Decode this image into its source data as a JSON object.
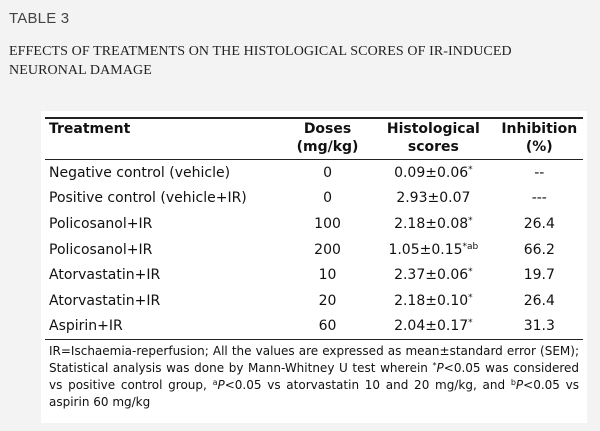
{
  "table_label": "TABLE 3",
  "caption": "EFFECTS OF TREATMENTS ON THE HISTOLOGICAL SCORES OF IR-INDUCED NEURONAL DAMAGE",
  "table": {
    "headers": {
      "treatment": "Treatment",
      "doses": "Doses",
      "doses_unit": "(mg/kg)",
      "scores": "Histological",
      "scores_line2": "scores",
      "inhibition": "Inhibition",
      "inhibition_unit": "(%)"
    },
    "rows": [
      {
        "treatment": "Negative control (vehicle)",
        "dose": "0",
        "score": "0.09±0.06",
        "score_sup": "*",
        "inhibition": "--"
      },
      {
        "treatment": "Positive control (vehicle+IR)",
        "dose": "0",
        "score": "2.93±0.07",
        "score_sup": "",
        "inhibition": "---"
      },
      {
        "treatment": "Policosanol+IR",
        "dose": "100",
        "score": "2.18±0.08",
        "score_sup": "*",
        "inhibition": "26.4"
      },
      {
        "treatment": "Policosanol+IR",
        "dose": "200",
        "score": "1.05±0.15",
        "score_sup": "*ab",
        "inhibition": "66.2"
      },
      {
        "treatment": "Atorvastatin+IR",
        "dose": "10",
        "score": "2.37±0.06",
        "score_sup": "*",
        "inhibition": "19.7"
      },
      {
        "treatment": "Atorvastatin+IR",
        "dose": "20",
        "score": "2.18±0.10",
        "score_sup": "*",
        "inhibition": "26.4"
      },
      {
        "treatment": "Aspirin+IR",
        "dose": "60",
        "score": "2.04±0.17",
        "score_sup": "*",
        "inhibition": "31.3"
      }
    ]
  },
  "footnote": {
    "part1": "IR=Ischaemia-reperfusion; All the values are expressed as mean±standard error (SEM); Statistical analysis was done by Mann-Whitney U test wherein ",
    "sup_star": "*",
    "p1": "P",
    "part2": "<0.05 was considered vs positive control group, ",
    "sup_a": "a",
    "p2": "P",
    "part3": "<0.05 vs atorvastatin 10 and 20 mg/kg, and ",
    "sup_b": "b",
    "p3": "P",
    "part4": "<0.05 vs aspirin 60 mg/kg"
  }
}
